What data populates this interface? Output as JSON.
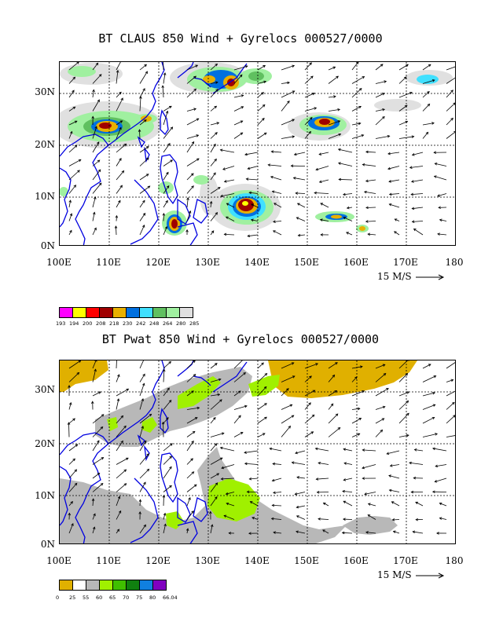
{
  "panel1": {
    "title": "BT CLAUS 850 Wind + Gyrelocs 000527/0000",
    "y_labels": [
      "30N",
      "20N",
      "10N",
      "0N"
    ],
    "x_labels": [
      "100E",
      "110E",
      "120E",
      "130E",
      "140E",
      "150E",
      "160E",
      "170E",
      "180"
    ],
    "scale_label": "15 M/S",
    "legend": {
      "colors": [
        "#ff00ff",
        "#ffff00",
        "#ff0000",
        "#a00000",
        "#e8b000",
        "#0070e0",
        "#40e0ff",
        "#60c060",
        "#a0f0a0",
        "#e0e0e0"
      ],
      "labels": [
        "193",
        "194",
        "200",
        "208",
        "218",
        "230",
        "242",
        "248",
        "264",
        "280",
        "285"
      ]
    }
  },
  "panel2": {
    "title": "BT Pwat 850 Wind + Gyrelocs 000527/0000",
    "y_labels": [
      "30N",
      "20N",
      "10N",
      "0N"
    ],
    "x_labels": [
      "100E",
      "110E",
      "120E",
      "130E",
      "140E",
      "150E",
      "160E",
      "170E",
      "180"
    ],
    "scale_label": "15 M/S",
    "legend": {
      "colors": [
        "#e0b000",
        "#ffffff",
        "#b8b8b8",
        "#a0f000",
        "#40c000",
        "#108010",
        "#1080e0",
        "#8000c0"
      ],
      "labels": [
        "0",
        "25",
        "55",
        "60",
        "65",
        "70",
        "75",
        "80",
        "66.04"
      ]
    }
  }
}
